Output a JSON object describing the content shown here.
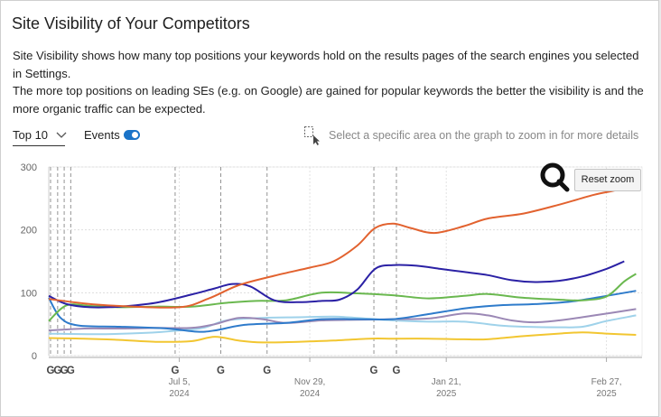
{
  "title": "Site Visibility of Your Competitors",
  "description": [
    "Site Visibility shows how many top positions your keywords hold on the results pages of the search engines you selected in Settings.",
    "The more top positions on leading SEs (e.g. on Google) are gained for popular keywords the better the visibility is and the more organic traffic can be expected."
  ],
  "controls": {
    "top_select": "Top 10",
    "events_label": "Events",
    "events_enabled": true,
    "zoom_hint": "Select a specific area on the graph to zoom in for more details",
    "reset_zoom": "Reset zoom"
  },
  "icons": {
    "zoom_select": "dashed-selection-cursor-icon",
    "magnifier": "magnifier-icon",
    "chevron": "chevron-down-icon"
  },
  "chart_data": {
    "type": "line",
    "title": "",
    "ylim": [
      0,
      300
    ],
    "yticks": [
      "0",
      "100",
      "200",
      "300"
    ],
    "xlim": [
      0,
      100
    ],
    "x_ticks": [
      {
        "pos": 22,
        "line1": "Jul 5,",
        "line2": "2024"
      },
      {
        "pos": 44,
        "line1": "Nov 29,",
        "line2": "2024"
      },
      {
        "pos": 67,
        "line1": "Jan 21,",
        "line2": "2025"
      },
      {
        "pos": 94,
        "line1": "Feb 27,",
        "line2": "2025"
      }
    ],
    "events": [
      {
        "pos": 0.3,
        "label": "G"
      },
      {
        "pos": 1.5,
        "label": "G"
      },
      {
        "pos": 2.6,
        "label": "G"
      },
      {
        "pos": 3.7,
        "label": "G"
      },
      {
        "pos": 21.3,
        "label": "G"
      },
      {
        "pos": 29.0,
        "label": "G"
      },
      {
        "pos": 36.8,
        "label": "G"
      },
      {
        "pos": 54.8,
        "label": "G"
      },
      {
        "pos": 58.6,
        "label": "G"
      }
    ],
    "grid": true,
    "series": [
      {
        "name": "orange",
        "color": "#e2622f",
        "points": [
          [
            0,
            90
          ],
          [
            6,
            83
          ],
          [
            12,
            79
          ],
          [
            22,
            77
          ],
          [
            27,
            91
          ],
          [
            32,
            112
          ],
          [
            38,
            127
          ],
          [
            44,
            140
          ],
          [
            48,
            150
          ],
          [
            52,
            175
          ],
          [
            55,
            203
          ],
          [
            58,
            210
          ],
          [
            61,
            203
          ],
          [
            65,
            195
          ],
          [
            70,
            206
          ],
          [
            74,
            218
          ],
          [
            80,
            226
          ],
          [
            86,
            240
          ],
          [
            92,
            256
          ],
          [
            96,
            264
          ],
          [
            99,
            276
          ]
        ]
      },
      {
        "name": "dark-blue",
        "color": "#2b21a5",
        "points": [
          [
            0,
            95
          ],
          [
            3,
            82
          ],
          [
            7,
            77
          ],
          [
            12,
            78
          ],
          [
            18,
            84
          ],
          [
            24,
            97
          ],
          [
            28,
            107
          ],
          [
            31,
            114
          ],
          [
            34,
            110
          ],
          [
            38,
            88
          ],
          [
            42,
            85
          ],
          [
            46,
            87
          ],
          [
            49,
            89
          ],
          [
            52,
            105
          ],
          [
            55,
            138
          ],
          [
            58,
            144
          ],
          [
            62,
            143
          ],
          [
            66,
            138
          ],
          [
            70,
            133
          ],
          [
            74,
            128
          ],
          [
            78,
            120
          ],
          [
            82,
            117
          ],
          [
            86,
            119
          ],
          [
            90,
            126
          ],
          [
            94,
            138
          ],
          [
            97,
            150
          ]
        ]
      },
      {
        "name": "green",
        "color": "#6ab84f",
        "points": [
          [
            0,
            55
          ],
          [
            3,
            80
          ],
          [
            7,
            79
          ],
          [
            12,
            77
          ],
          [
            18,
            78
          ],
          [
            24,
            78
          ],
          [
            30,
            84
          ],
          [
            35,
            87
          ],
          [
            40,
            88
          ],
          [
            46,
            100
          ],
          [
            52,
            99
          ],
          [
            58,
            96
          ],
          [
            64,
            91
          ],
          [
            70,
            95
          ],
          [
            74,
            98
          ],
          [
            80,
            92
          ],
          [
            86,
            89
          ],
          [
            90,
            88
          ],
          [
            94,
            94
          ],
          [
            97,
            118
          ],
          [
            99,
            130
          ]
        ]
      },
      {
        "name": "blue",
        "color": "#2e7bcb",
        "points": [
          [
            0,
            92
          ],
          [
            2,
            60
          ],
          [
            5,
            48
          ],
          [
            12,
            46
          ],
          [
            20,
            43
          ],
          [
            25,
            38
          ],
          [
            28,
            40
          ],
          [
            33,
            49
          ],
          [
            40,
            52
          ],
          [
            46,
            58
          ],
          [
            52,
            58
          ],
          [
            58,
            58
          ],
          [
            64,
            66
          ],
          [
            70,
            75
          ],
          [
            76,
            80
          ],
          [
            82,
            82
          ],
          [
            88,
            86
          ],
          [
            94,
            95
          ],
          [
            99,
            103
          ]
        ]
      },
      {
        "name": "purple",
        "color": "#9b88b5",
        "points": [
          [
            0,
            40
          ],
          [
            6,
            43
          ],
          [
            12,
            43
          ],
          [
            18,
            44
          ],
          [
            24,
            44
          ],
          [
            28,
            50
          ],
          [
            32,
            60
          ],
          [
            36,
            58
          ],
          [
            40,
            52
          ],
          [
            46,
            56
          ],
          [
            52,
            57
          ],
          [
            58,
            58
          ],
          [
            64,
            59
          ],
          [
            70,
            67
          ],
          [
            74,
            64
          ],
          [
            78,
            56
          ],
          [
            82,
            53
          ],
          [
            86,
            56
          ],
          [
            92,
            64
          ],
          [
            99,
            74
          ]
        ]
      },
      {
        "name": "light-blue",
        "color": "#9fd2ea",
        "points": [
          [
            0,
            35
          ],
          [
            8,
            34
          ],
          [
            16,
            36
          ],
          [
            22,
            40
          ],
          [
            26,
            44
          ],
          [
            30,
            56
          ],
          [
            36,
            60
          ],
          [
            42,
            61
          ],
          [
            48,
            62
          ],
          [
            52,
            60
          ],
          [
            58,
            56
          ],
          [
            64,
            54
          ],
          [
            70,
            54
          ],
          [
            76,
            48
          ],
          [
            80,
            46
          ],
          [
            86,
            45
          ],
          [
            90,
            46
          ],
          [
            94,
            55
          ],
          [
            99,
            64
          ]
        ]
      },
      {
        "name": "yellow",
        "color": "#f2c631",
        "points": [
          [
            0,
            28
          ],
          [
            6,
            27
          ],
          [
            12,
            25
          ],
          [
            18,
            22
          ],
          [
            24,
            23
          ],
          [
            28,
            30
          ],
          [
            32,
            24
          ],
          [
            36,
            21
          ],
          [
            42,
            22
          ],
          [
            48,
            24
          ],
          [
            54,
            27
          ],
          [
            58,
            27
          ],
          [
            64,
            27
          ],
          [
            70,
            26
          ],
          [
            74,
            26
          ],
          [
            80,
            31
          ],
          [
            86,
            35
          ],
          [
            90,
            37
          ],
          [
            94,
            35
          ],
          [
            99,
            33
          ]
        ]
      }
    ]
  }
}
